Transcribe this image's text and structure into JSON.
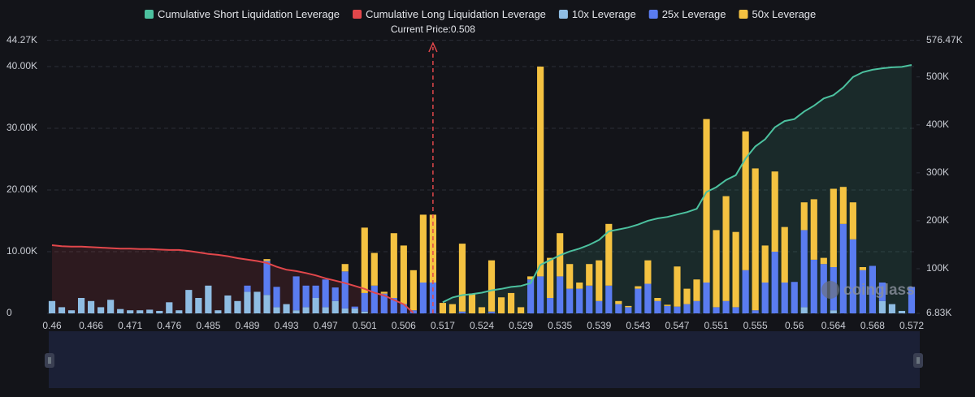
{
  "chart_data": {
    "type": "combo",
    "annotation": "Current Price:0.508",
    "watermark": "coinglass",
    "categories": [
      0.46,
      null,
      null,
      null,
      0.466,
      null,
      null,
      null,
      0.471,
      null,
      null,
      null,
      0.476,
      null,
      null,
      null,
      0.485,
      null,
      null,
      null,
      0.489,
      null,
      null,
      null,
      0.493,
      null,
      null,
      null,
      0.497,
      null,
      null,
      null,
      0.501,
      null,
      null,
      null,
      0.506,
      null,
      null,
      null,
      0.517,
      null,
      null,
      null,
      0.524,
      null,
      null,
      null,
      0.529,
      null,
      null,
      null,
      0.535,
      null,
      null,
      null,
      0.539,
      null,
      null,
      null,
      0.543,
      null,
      null,
      null,
      0.547,
      null,
      null,
      null,
      0.551,
      null,
      null,
      null,
      0.555,
      null,
      null,
      null,
      0.56,
      null,
      null,
      null,
      0.564,
      null,
      null,
      null,
      0.568,
      null,
      null,
      null,
      0.572
    ],
    "ylim": [
      0,
      44270
    ],
    "yticks": [
      0,
      {
        "value": 10000,
        "label": "10.00K"
      },
      {
        "value": 20000,
        "label": "20.00K"
      },
      {
        "value": 30000,
        "label": "30.00K"
      },
      {
        "value": 40000,
        "label": "40.00K"
      },
      {
        "value": 44270,
        "label": "44.27K"
      }
    ],
    "y2lim": [
      6830,
      576470
    ],
    "y2ticks": [
      {
        "value": 6830,
        "label": "6.83K"
      },
      {
        "value": 100000,
        "label": "100K"
      },
      {
        "value": 200000,
        "label": "200K"
      },
      {
        "value": 300000,
        "label": "300K"
      },
      {
        "value": 400000,
        "label": "400K"
      },
      {
        "value": 500000,
        "label": "500K"
      },
      {
        "value": 576470,
        "label": "576.47K"
      }
    ],
    "grid": true,
    "stacked": true,
    "series": [
      {
        "name": "Cumulative Short Liquidation Leverage",
        "color": "#4cc19f",
        "type": "line",
        "axis": "y2",
        "values": [
          null,
          null,
          null,
          null,
          null,
          null,
          null,
          null,
          null,
          null,
          null,
          null,
          null,
          null,
          null,
          null,
          null,
          null,
          null,
          null,
          null,
          null,
          null,
          null,
          null,
          null,
          null,
          null,
          null,
          null,
          null,
          null,
          null,
          null,
          null,
          null,
          null,
          null,
          null,
          null,
          30000,
          40000,
          45000,
          47000,
          50000,
          55000,
          58000,
          62000,
          64000,
          70000,
          108000,
          118000,
          128000,
          136000,
          142000,
          150000,
          160000,
          178000,
          182000,
          186000,
          192000,
          200000,
          205000,
          208000,
          213000,
          218000,
          225000,
          260000,
          270000,
          285000,
          295000,
          330000,
          355000,
          370000,
          395000,
          408000,
          412000,
          428000,
          440000,
          455000,
          462000,
          478000,
          500000,
          510000,
          515000,
          518000,
          520000,
          521000,
          525000
        ]
      },
      {
        "name": "Cumulative Long Liquidation Leverage",
        "color": "#e2474b",
        "type": "line",
        "axis": "y2",
        "values": [
          149000,
          147000,
          146000,
          146000,
          145000,
          144000,
          143000,
          142000,
          142000,
          141000,
          141000,
          140000,
          139000,
          139000,
          137000,
          134000,
          131000,
          129000,
          126000,
          122000,
          119000,
          116000,
          112000,
          104000,
          98000,
          95000,
          91000,
          86000,
          80000,
          75000,
          70000,
          64000,
          58000,
          50000,
          44000,
          35000,
          26000,
          8000,
          null,
          null,
          null,
          null,
          null,
          null,
          null,
          null,
          null,
          null,
          null,
          null,
          null,
          null,
          null,
          null,
          null,
          null,
          null,
          null,
          null,
          null,
          null,
          null,
          null,
          null,
          null,
          null,
          null,
          null,
          null,
          null,
          null,
          null,
          null,
          null,
          null,
          null,
          null,
          null,
          null,
          null,
          null,
          null,
          null,
          null,
          null,
          null,
          null,
          null,
          null
        ]
      },
      {
        "name": "10x Leverage",
        "color": "#8fbde3",
        "type": "bar",
        "values": [
          2000,
          1000,
          500,
          2500,
          2000,
          1000,
          2200,
          700,
          500,
          500,
          600,
          400,
          1800,
          500,
          3800,
          2500,
          4500,
          500,
          2900,
          2000,
          3500,
          3500,
          3000,
          1000,
          1500,
          500,
          1000,
          2500,
          1000,
          2000,
          800,
          800,
          300,
          0,
          0,
          0,
          0,
          0,
          0,
          0,
          0,
          0,
          0,
          0,
          0,
          0,
          0,
          0,
          0,
          0,
          0,
          0,
          0,
          0,
          0,
          0,
          0,
          0,
          0,
          0,
          0,
          0,
          0,
          0,
          0,
          0,
          0,
          0,
          0,
          0,
          0,
          0,
          0,
          0,
          0,
          0,
          0,
          1000,
          0,
          0,
          500,
          0,
          0,
          0,
          0,
          2000,
          1500,
          400,
          0
        ]
      },
      {
        "name": "25x Leverage",
        "color": "#5a7cf0",
        "type": "bar",
        "values": [
          0,
          0,
          0,
          0,
          0,
          0,
          0,
          0,
          0,
          0,
          0,
          0,
          0,
          0,
          0,
          0,
          0,
          0,
          0,
          0,
          1000,
          0,
          5500,
          3300,
          0,
          5500,
          3500,
          2000,
          4500,
          2200,
          6000,
          300,
          3000,
          4500,
          3200,
          2500,
          1500,
          500,
          5000,
          5000,
          0,
          0,
          300,
          0,
          0,
          300,
          0,
          0,
          0,
          5500,
          6000,
          2500,
          6000,
          4000,
          4000,
          4500,
          2000,
          4500,
          1500,
          1000,
          4000,
          4800,
          2000,
          1200,
          1100,
          1500,
          2000,
          5000,
          1000,
          2000,
          1000,
          7000,
          500,
          5000,
          10000,
          5000,
          5100,
          12500,
          8700,
          8000,
          7000,
          14500,
          12000,
          7000,
          7700,
          3000,
          0,
          0,
          4300
        ]
      },
      {
        "name": "50x Leverage",
        "color": "#f4c241",
        "type": "bar",
        "values": [
          0,
          0,
          0,
          0,
          0,
          0,
          0,
          0,
          0,
          0,
          0,
          0,
          0,
          0,
          0,
          0,
          0,
          0,
          0,
          0,
          0,
          0,
          300,
          0,
          0,
          0,
          0,
          0,
          0,
          0,
          1200,
          0,
          10600,
          5300,
          300,
          10500,
          9500,
          6500,
          11000,
          11000,
          1700,
          1500,
          11000,
          3200,
          1000,
          8300,
          2600,
          3300,
          1000,
          500,
          34000,
          6500,
          7000,
          4000,
          1000,
          3500,
          6600,
          10000,
          500,
          200,
          400,
          3800,
          500,
          200,
          6500,
          2500,
          3500,
          26500,
          12500,
          17000,
          12200,
          22500,
          23000,
          6000,
          13000,
          9000,
          0,
          4500,
          9800,
          1000,
          12700,
          6000,
          6000,
          500,
          0,
          0,
          0,
          0,
          0
        ]
      }
    ]
  }
}
